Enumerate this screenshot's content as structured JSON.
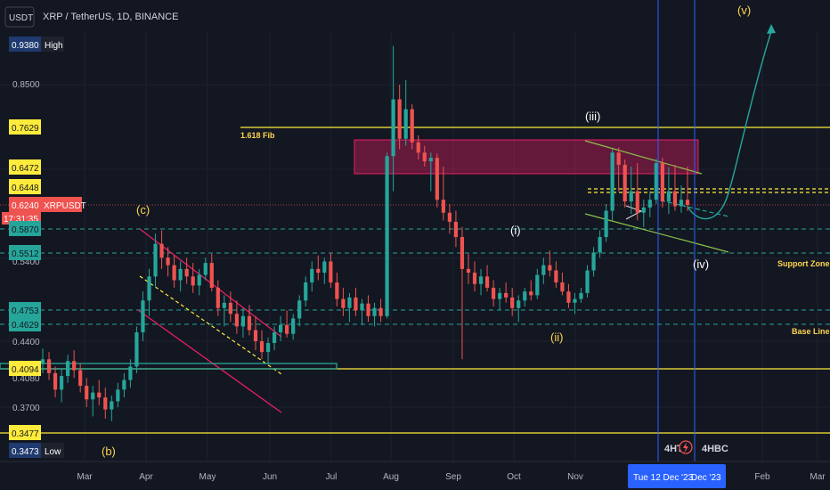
{
  "header": {
    "currency_button": "USDT",
    "title": "XRP / TetherUS, 1D, BINANCE"
  },
  "colors": {
    "background": "#131722",
    "bull": "#26a69a",
    "bear": "#ef5350",
    "fib_line": "#ffeb3b",
    "resistance_box": "#e91e63",
    "channel": "#e91e63",
    "dashed_teal": "#26a69a",
    "triangle": "#8bc34a",
    "projection": "#26a69a",
    "vertical_line": "#2962ff"
  },
  "chart_data": {
    "type": "candlestick",
    "symbol": "XRPUSDT",
    "y_range": [
      0.33,
      0.97
    ],
    "x_labels": [
      "Mar",
      "Apr",
      "May",
      "Jun",
      "Jul",
      "Aug",
      "Sep",
      "Oct",
      "Nov",
      "Feb",
      "Mar"
    ],
    "y_ticks": [
      "0.8500",
      "0.4400",
      "0.3700"
    ],
    "y_ticks_partial": [
      "0.5400",
      "0.4080"
    ],
    "price_tags": [
      {
        "text": "0.9380",
        "label": "High",
        "value": 0.938,
        "kind": "high"
      },
      {
        "text": "0.7629",
        "value": 0.7629,
        "kind": "yellow"
      },
      {
        "text": "0.6472",
        "value": 0.6472,
        "kind": "yellow"
      },
      {
        "text": "0.6448",
        "value": 0.6448,
        "kind": "yellow"
      },
      {
        "text": "0.6240",
        "label": "XRPUSDT",
        "countdown": "17:31:35",
        "value": 0.624,
        "kind": "current"
      },
      {
        "text": "0.5870",
        "value": 0.587,
        "kind": "teal"
      },
      {
        "text": "0.5512",
        "value": 0.5512,
        "kind": "teal"
      },
      {
        "text": "0.4753",
        "value": 0.4753,
        "kind": "teal"
      },
      {
        "text": "0.4629",
        "value": 0.4629,
        "kind": "teal"
      },
      {
        "text": "0.4094",
        "value": 0.4094,
        "kind": "yellow"
      },
      {
        "text": "0.3477",
        "value": 0.3477,
        "kind": "yellow"
      },
      {
        "text": "0.3473",
        "label": "Low",
        "value": 0.3473,
        "kind": "low"
      }
    ],
    "horizontal_levels": [
      0.7629,
      0.6472,
      0.6448,
      0.587,
      0.5512,
      0.4753,
      0.4629,
      0.4094,
      0.3477
    ],
    "wave_labels": [
      {
        "text": "(c)",
        "style": "yellow"
      },
      {
        "text": "(b)",
        "style": "yellow"
      },
      {
        "text": "(iii)",
        "style": "white"
      },
      {
        "text": "(i)",
        "style": "white"
      },
      {
        "text": "(ii)",
        "style": "yellow"
      },
      {
        "text": "(iv)",
        "style": "white"
      },
      {
        "text": "(v)",
        "style": "yellow"
      }
    ],
    "annotations": {
      "fib": "1.618 Fib",
      "support": "Support Zone",
      "base": "Base Line"
    },
    "markers": {
      "left": "4HT",
      "right": "4HBC"
    },
    "crosshair_date": "Tue 12 Dec '23",
    "crosshair_date_partial": "Dec '23",
    "candles_ohlc": [
      [
        0.415,
        0.432,
        0.405,
        0.42
      ],
      [
        0.42,
        0.428,
        0.398,
        0.405
      ],
      [
        0.405,
        0.412,
        0.38,
        0.388
      ],
      [
        0.388,
        0.41,
        0.375,
        0.402
      ],
      [
        0.402,
        0.425,
        0.395,
        0.418
      ],
      [
        0.418,
        0.43,
        0.4,
        0.408
      ],
      [
        0.408,
        0.415,
        0.385,
        0.392
      ],
      [
        0.392,
        0.4,
        0.37,
        0.378
      ],
      [
        0.378,
        0.392,
        0.362,
        0.385
      ],
      [
        0.385,
        0.398,
        0.372,
        0.38
      ],
      [
        0.38,
        0.39,
        0.36,
        0.368
      ],
      [
        0.368,
        0.382,
        0.358,
        0.376
      ],
      [
        0.376,
        0.395,
        0.37,
        0.388
      ],
      [
        0.388,
        0.405,
        0.38,
        0.398
      ],
      [
        0.398,
        0.42,
        0.39,
        0.412
      ],
      [
        0.412,
        0.46,
        0.405,
        0.452
      ],
      [
        0.452,
        0.5,
        0.44,
        0.488
      ],
      [
        0.488,
        0.53,
        0.47,
        0.52
      ],
      [
        0.52,
        0.58,
        0.505,
        0.565
      ],
      [
        0.565,
        0.585,
        0.53,
        0.545
      ],
      [
        0.545,
        0.56,
        0.52,
        0.535
      ],
      [
        0.535,
        0.548,
        0.505,
        0.515
      ],
      [
        0.515,
        0.54,
        0.5,
        0.53
      ],
      [
        0.53,
        0.545,
        0.51,
        0.52
      ],
      [
        0.52,
        0.538,
        0.498,
        0.508
      ],
      [
        0.508,
        0.53,
        0.495,
        0.522
      ],
      [
        0.522,
        0.545,
        0.515,
        0.538
      ],
      [
        0.538,
        0.55,
        0.5,
        0.505
      ],
      [
        0.505,
        0.515,
        0.47,
        0.478
      ],
      [
        0.478,
        0.495,
        0.46,
        0.485
      ],
      [
        0.485,
        0.5,
        0.465,
        0.472
      ],
      [
        0.472,
        0.488,
        0.45,
        0.46
      ],
      [
        0.46,
        0.478,
        0.445,
        0.47
      ],
      [
        0.47,
        0.482,
        0.448,
        0.455
      ],
      [
        0.455,
        0.47,
        0.43,
        0.44
      ],
      [
        0.44,
        0.455,
        0.42,
        0.428
      ],
      [
        0.428,
        0.445,
        0.415,
        0.438
      ],
      [
        0.438,
        0.46,
        0.43,
        0.452
      ],
      [
        0.452,
        0.47,
        0.44,
        0.462
      ],
      [
        0.462,
        0.475,
        0.445,
        0.45
      ],
      [
        0.45,
        0.472,
        0.442,
        0.468
      ],
      [
        0.468,
        0.495,
        0.46,
        0.488
      ],
      [
        0.488,
        0.52,
        0.48,
        0.512
      ],
      [
        0.512,
        0.54,
        0.5,
        0.53
      ],
      [
        0.53,
        0.548,
        0.515,
        0.525
      ],
      [
        0.525,
        0.545,
        0.51,
        0.54
      ],
      [
        0.54,
        0.552,
        0.505,
        0.512
      ],
      [
        0.512,
        0.525,
        0.48,
        0.49
      ],
      [
        0.49,
        0.505,
        0.47,
        0.478
      ],
      [
        0.478,
        0.498,
        0.465,
        0.492
      ],
      [
        0.492,
        0.505,
        0.47,
        0.475
      ],
      [
        0.475,
        0.49,
        0.462,
        0.484
      ],
      [
        0.484,
        0.495,
        0.465,
        0.47
      ],
      [
        0.47,
        0.485,
        0.46,
        0.478
      ],
      [
        0.478,
        0.49,
        0.465,
        0.47
      ],
      [
        0.47,
        0.69,
        0.468,
        0.68
      ],
      [
        0.68,
        0.935,
        0.64,
        0.82
      ],
      [
        0.82,
        0.85,
        0.7,
        0.73
      ],
      [
        0.73,
        0.86,
        0.71,
        0.8
      ],
      [
        0.8,
        0.81,
        0.7,
        0.72
      ],
      [
        0.72,
        0.74,
        0.67,
        0.69
      ],
      [
        0.69,
        0.71,
        0.65,
        0.665
      ],
      [
        0.665,
        0.69,
        0.64,
        0.675
      ],
      [
        0.675,
        0.688,
        0.62,
        0.63
      ],
      [
        0.63,
        0.65,
        0.6,
        0.612
      ],
      [
        0.612,
        0.625,
        0.58,
        0.598
      ],
      [
        0.598,
        0.615,
        0.56,
        0.575
      ],
      [
        0.575,
        0.59,
        0.42,
        0.53
      ],
      [
        0.53,
        0.55,
        0.51,
        0.525
      ],
      [
        0.525,
        0.54,
        0.5,
        0.51
      ],
      [
        0.51,
        0.53,
        0.495,
        0.52
      ],
      [
        0.52,
        0.535,
        0.5,
        0.505
      ],
      [
        0.505,
        0.515,
        0.48,
        0.49
      ],
      [
        0.49,
        0.505,
        0.475,
        0.498
      ],
      [
        0.498,
        0.512,
        0.485,
        0.492
      ],
      [
        0.492,
        0.505,
        0.47,
        0.478
      ],
      [
        0.478,
        0.495,
        0.465,
        0.488
      ],
      [
        0.488,
        0.505,
        0.48,
        0.5
      ],
      [
        0.5,
        0.515,
        0.488,
        0.495
      ],
      [
        0.495,
        0.53,
        0.49,
        0.522
      ],
      [
        0.522,
        0.545,
        0.51,
        0.535
      ],
      [
        0.535,
        0.555,
        0.52,
        0.528
      ],
      [
        0.528,
        0.54,
        0.505,
        0.512
      ],
      [
        0.512,
        0.525,
        0.495,
        0.5
      ],
      [
        0.5,
        0.51,
        0.478,
        0.485
      ],
      [
        0.485,
        0.498,
        0.472,
        0.49
      ],
      [
        0.49,
        0.505,
        0.485,
        0.498
      ],
      [
        0.498,
        0.535,
        0.492,
        0.528
      ],
      [
        0.528,
        0.56,
        0.52,
        0.552
      ],
      [
        0.552,
        0.585,
        0.545,
        0.575
      ],
      [
        0.575,
        0.625,
        0.568,
        0.615
      ],
      [
        0.615,
        0.7,
        0.6,
        0.69
      ],
      [
        0.69,
        0.705,
        0.64,
        0.655
      ],
      [
        0.655,
        0.67,
        0.62,
        0.628
      ],
      [
        0.628,
        0.65,
        0.61,
        0.64
      ],
      [
        0.64,
        0.66,
        0.6,
        0.612
      ],
      [
        0.612,
        0.63,
        0.59,
        0.62
      ],
      [
        0.62,
        0.64,
        0.605,
        0.63
      ],
      [
        0.63,
        0.672,
        0.625,
        0.66
      ],
      [
        0.66,
        0.675,
        0.62,
        0.628
      ],
      [
        0.628,
        0.648,
        0.61,
        0.64
      ],
      [
        0.64,
        0.655,
        0.615,
        0.622
      ],
      [
        0.622,
        0.645,
        0.612,
        0.63
      ],
      [
        0.63,
        0.65,
        0.615,
        0.624
      ]
    ]
  }
}
